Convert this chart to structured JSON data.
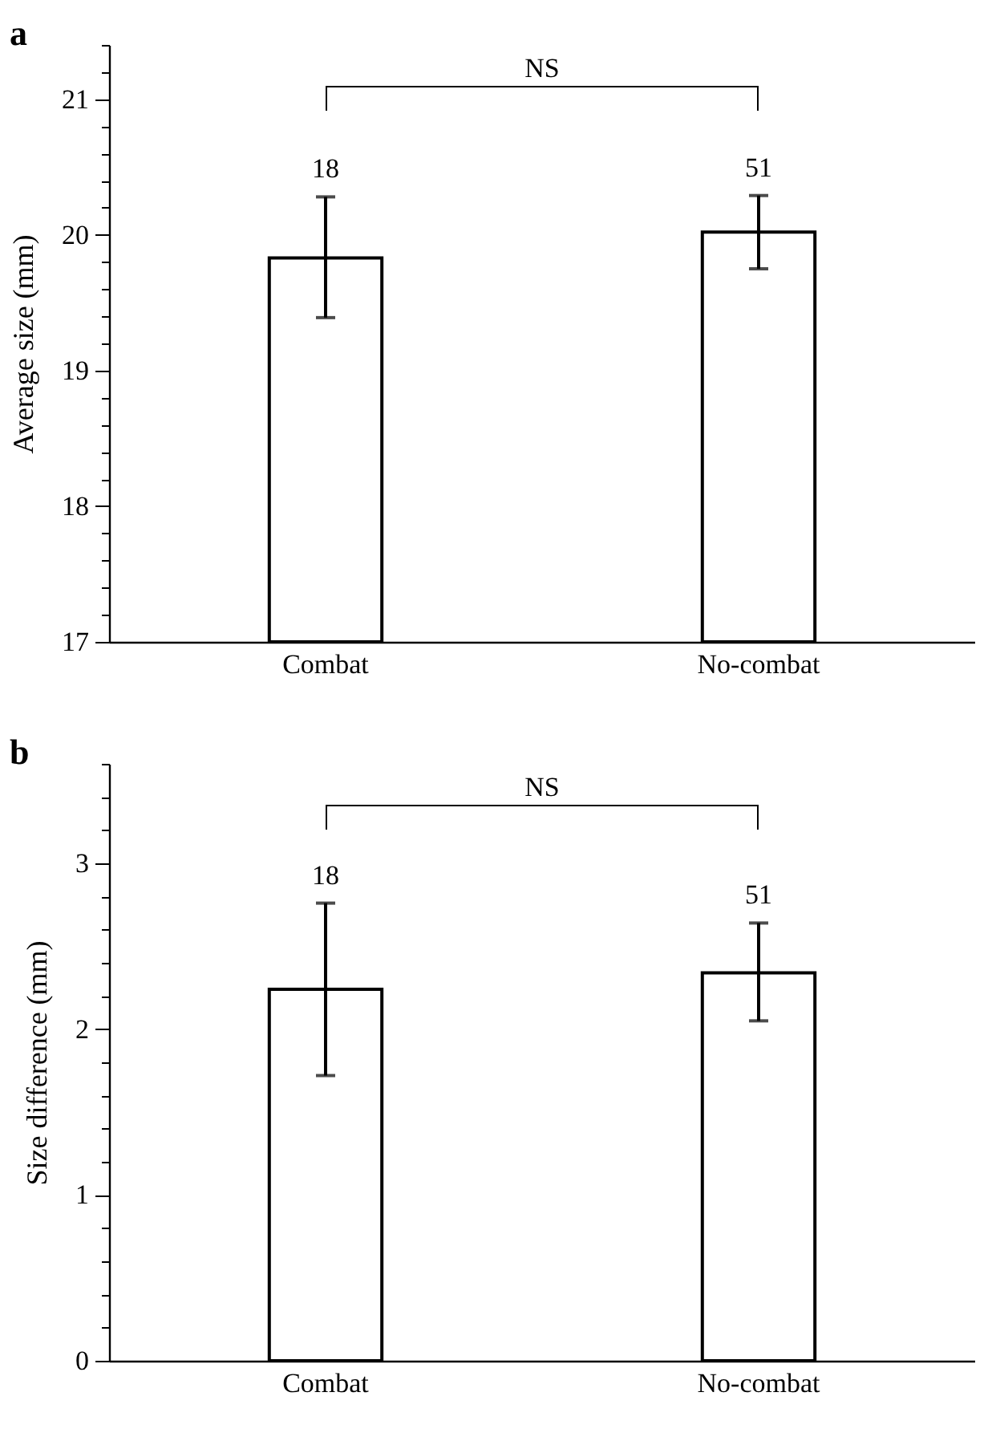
{
  "chart_data": [
    {
      "type": "bar",
      "title": "a",
      "categories": [
        "Combat",
        "No-combat"
      ],
      "values": [
        19.83,
        20.02
      ],
      "errors": [
        [
          19.39,
          20.28
        ],
        [
          19.75,
          20.29
        ]
      ],
      "color": "#ffffff",
      "ylabel": "Average size (mm)",
      "ylim": [
        17,
        21.4
      ],
      "yticks": [
        17,
        {
          "value": 17.2,
          "label": null
        },
        {
          "value": 17.4,
          "label": null
        },
        {
          "value": 17.6,
          "label": null
        },
        {
          "value": 17.8,
          "label": null
        },
        18,
        {
          "value": 18.2,
          "label": null
        },
        {
          "value": 18.4,
          "label": null
        },
        {
          "value": 18.6,
          "label": null
        },
        {
          "value": 18.8,
          "label": null
        },
        19,
        {
          "value": 19.2,
          "label": null
        },
        {
          "value": 19.4,
          "label": null
        },
        {
          "value": 19.6,
          "label": null
        },
        {
          "value": 19.8,
          "label": null
        },
        20,
        {
          "value": 20.2,
          "label": null
        },
        {
          "value": 20.4,
          "label": null
        },
        {
          "value": 20.6,
          "label": null
        },
        {
          "value": 20.8,
          "label": null
        },
        21,
        {
          "value": 21.2,
          "label": null
        },
        {
          "value": 21.4,
          "label": null
        }
      ],
      "grid": false,
      "annotations": [
        "18",
        "51",
        "NS"
      ]
    },
    {
      "type": "bar",
      "title": "b",
      "categories": [
        "Combat",
        "No-combat"
      ],
      "values": [
        2.24,
        2.34
      ],
      "errors": [
        [
          1.72,
          2.76
        ],
        [
          2.05,
          2.64
        ]
      ],
      "color": "#ffffff",
      "ylabel": "Size difference (mm)",
      "ylim": [
        0,
        3.6
      ],
      "yticks": [
        0,
        {
          "value": 0.2,
          "label": null
        },
        {
          "value": 0.4,
          "label": null
        },
        {
          "value": 0.6,
          "label": null
        },
        {
          "value": 0.8,
          "label": null
        },
        1,
        {
          "value": 1.2,
          "label": null
        },
        {
          "value": 1.4,
          "label": null
        },
        {
          "value": 1.6,
          "label": null
        },
        {
          "value": 1.8,
          "label": null
        },
        2,
        {
          "value": 2.2,
          "label": null
        },
        {
          "value": 2.4,
          "label": null
        },
        {
          "value": 2.6,
          "label": null
        },
        {
          "value": 2.8,
          "label": null
        },
        3,
        {
          "value": 3.2,
          "label": null
        },
        {
          "value": 3.4,
          "label": null
        },
        {
          "value": 3.6,
          "label": null
        }
      ],
      "grid": false,
      "annotations": [
        "18",
        "51",
        "NS"
      ]
    }
  ]
}
